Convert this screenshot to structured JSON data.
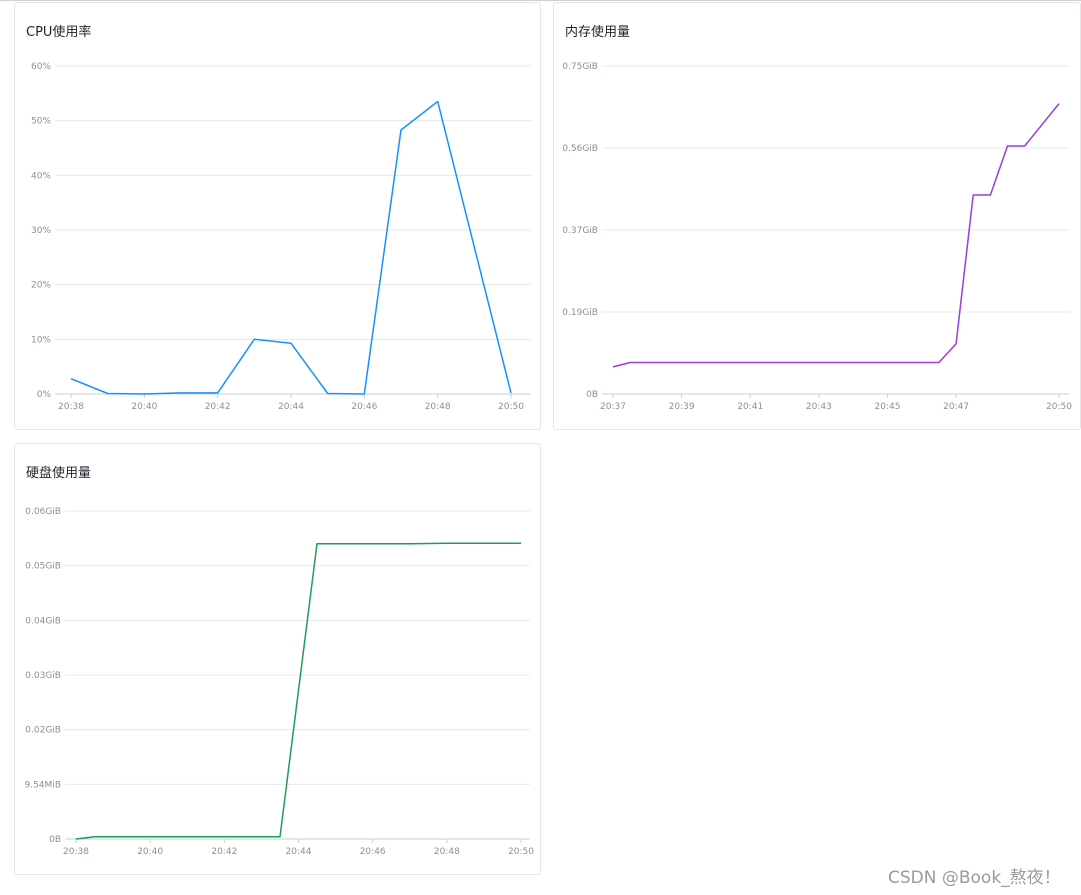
{
  "watermark": "CSDN @Book_熬夜！",
  "chart_data": [
    {
      "id": "cpu",
      "type": "line",
      "title": "CPU使用率",
      "color": "#1890ff",
      "xlabel": "",
      "ylabel": "",
      "grid": true,
      "yticks": [
        "0%",
        "10%",
        "20%",
        "30%",
        "40%",
        "50%",
        "60%"
      ],
      "ylim": [
        0,
        60
      ],
      "xticks": [
        "20:38",
        "20:40",
        "20:42",
        "20:44",
        "20:46",
        "20:48",
        "20:50"
      ],
      "xlim": [
        "20:38",
        "20:50"
      ],
      "series": [
        {
          "x": [
            "20:38",
            "20:39",
            "20:40",
            "20:41",
            "20:42",
            "20:43",
            "20:44",
            "20:45",
            "20:46",
            "20:47",
            "20:48",
            "20:50"
          ],
          "y": [
            2.8,
            0.1,
            0.0,
            0.2,
            0.2,
            10.0,
            9.3,
            0.1,
            0.0,
            48.3,
            53.5,
            0.2
          ]
        }
      ]
    },
    {
      "id": "memory",
      "type": "line",
      "title": "内存使用量",
      "color": "#9b3ddb",
      "xlabel": "",
      "ylabel": "",
      "grid": true,
      "yticks": [
        "0B",
        "0.19GiB",
        "0.37GiB",
        "0.56GiB",
        "0.75GiB"
      ],
      "ylim": [
        0,
        0.75
      ],
      "xticks": [
        "20:37",
        "20:39",
        "20:41",
        "20:43",
        "20:45",
        "20:47",
        "20:50"
      ],
      "xlim": [
        "20:37",
        "20:50"
      ],
      "series": [
        {
          "x": [
            "20:37",
            "20:37:30",
            "20:46:30",
            "20:47",
            "20:47:30",
            "20:48",
            "20:48:30",
            "20:49",
            "20:50"
          ],
          "y": [
            0.062,
            0.072,
            0.072,
            0.115,
            0.455,
            0.455,
            0.567,
            0.567,
            0.664
          ]
        }
      ]
    },
    {
      "id": "disk",
      "type": "line",
      "title": "硬盘使用量",
      "color": "#1f9d55",
      "xlabel": "",
      "ylabel": "",
      "grid": true,
      "yticks": [
        "0B",
        "9.54MiB",
        "0.02GiB",
        "0.03GiB",
        "0.04GiB",
        "0.05GiB",
        "0.06GiB"
      ],
      "ylim": [
        0,
        0.06
      ],
      "xticks": [
        "20:38",
        "20:40",
        "20:42",
        "20:44",
        "20:46",
        "20:48",
        "20:50"
      ],
      "xlim": [
        "20:38",
        "20:50"
      ],
      "series": [
        {
          "x": [
            "20:38",
            "20:38:30",
            "20:43:30",
            "20:44:30",
            "20:47",
            "20:48",
            "20:50"
          ],
          "y": [
            0.0,
            0.0004,
            0.0004,
            0.054,
            0.054,
            0.0541,
            0.0541
          ]
        }
      ]
    }
  ]
}
